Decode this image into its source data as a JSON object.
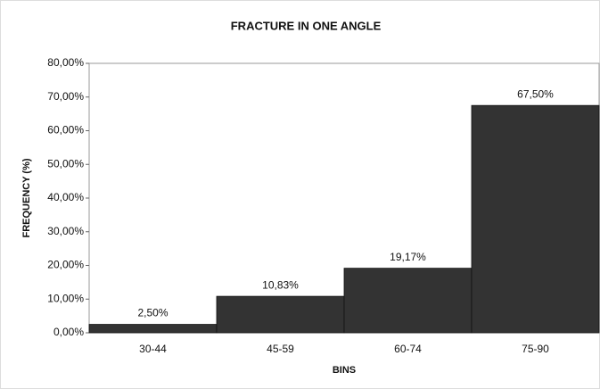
{
  "chart_data": {
    "type": "bar",
    "title": "FRACTURE IN ONE ANGLE",
    "x_label": "BINS",
    "y_label": "FREQUENCY (%)",
    "categories": [
      "30-44",
      "45-59",
      "60-74",
      "75-90"
    ],
    "values": [
      2.5,
      10.83,
      19.17,
      67.5
    ],
    "value_labels": [
      "2,50%",
      "10,83%",
      "19,17%",
      "67,50%"
    ],
    "color": "#333333",
    "ylim": [
      0,
      80
    ],
    "yticks": [
      {
        "value": 0,
        "label": "0,00%"
      },
      {
        "value": 10,
        "label": "10,00%"
      },
      {
        "value": 20,
        "label": "20,00%"
      },
      {
        "value": 30,
        "label": "30,00%"
      },
      {
        "value": 40,
        "label": "40,00%"
      },
      {
        "value": 50,
        "label": "50,00%"
      },
      {
        "value": 60,
        "label": "60,00%"
      },
      {
        "value": 70,
        "label": "70,00%"
      },
      {
        "value": 80,
        "label": "80,00%"
      }
    ]
  }
}
